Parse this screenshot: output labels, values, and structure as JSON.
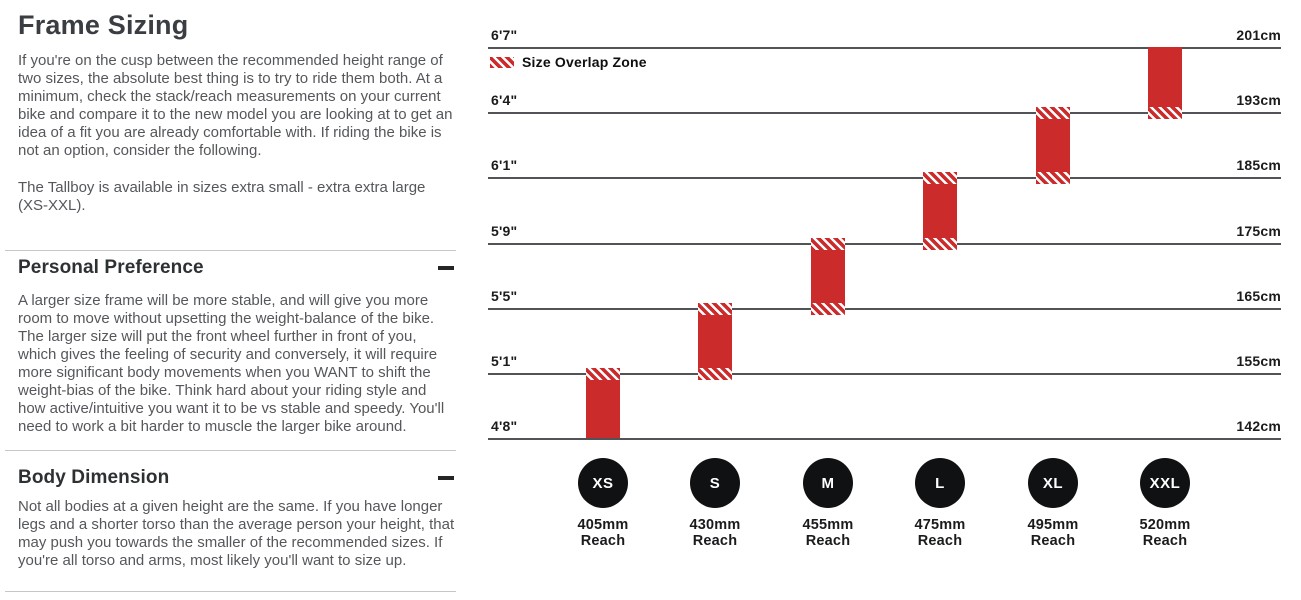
{
  "page": {
    "title": "Frame Sizing",
    "intro_p1": "If you're on the cusp between the recommended height range of two sizes, the absolute best thing is to try to ride them both. At a minimum, check the stack/reach measurements on your current bike and compare it to the new model you are looking at to get an idea of a fit you are already comfortable with. If riding the bike is not an option, consider the following.",
    "intro_p2": "The Tallboy is available in sizes extra small - extra extra large (XS-XXL).",
    "sections": [
      {
        "heading": "Personal Preference",
        "collapse_state": "expanded",
        "body": "A larger size frame will be more stable, and will give you more room to move without upsetting the weight-balance of the bike. The larger size will put the front wheel further in front of you, which gives the feeling of security and conversely, it will require more significant body movements when you WANT to shift the weight-bias of the bike. Think hard about your riding style and how active/intuitive you want it to be vs stable and speedy. You'll need to work a bit harder to muscle the larger bike around."
      },
      {
        "heading": "Body Dimension",
        "collapse_state": "expanded",
        "body": "Not all bodies at a given height are the same. If you have longer legs and a shorter torso than the average person your height, that may push you towards the smaller of the recommended sizes. If you're all torso and arms, most likely you'll want to size up."
      }
    ]
  },
  "chart_data": {
    "type": "bar",
    "subtype": "vertical-range-bars-by-rider-height",
    "title": "",
    "legend": {
      "label": "Size Overlap Zone",
      "swatch": "red-with-white-diagonal-hatch",
      "position": "top-left"
    },
    "colors": {
      "bar_red": "#cc2b2b",
      "circle_black": "#101112",
      "gridline": "#525356"
    },
    "grid": "horizontal-lines-only",
    "height_lines": [
      {
        "ft": "6'7\"",
        "cm": "201cm"
      },
      {
        "ft": "6'4\"",
        "cm": "193cm"
      },
      {
        "ft": "6'1\"",
        "cm": "185cm"
      },
      {
        "ft": "5'9\"",
        "cm": "175cm"
      },
      {
        "ft": "5'5\"",
        "cm": "165cm"
      },
      {
        "ft": "5'1\"",
        "cm": "155cm"
      },
      {
        "ft": "4'8\"",
        "cm": "142cm"
      }
    ],
    "sizes": [
      {
        "label": "XS",
        "reach_value": "405mm",
        "reach_caption": "Reach",
        "from_line": 6,
        "to_line": 5,
        "overlap_top": true,
        "overlap_bottom": false
      },
      {
        "label": "S",
        "reach_value": "430mm",
        "reach_caption": "Reach",
        "from_line": 5,
        "to_line": 4,
        "overlap_top": true,
        "overlap_bottom": true
      },
      {
        "label": "M",
        "reach_value": "455mm",
        "reach_caption": "Reach",
        "from_line": 4,
        "to_line": 3,
        "overlap_top": true,
        "overlap_bottom": true
      },
      {
        "label": "L",
        "reach_value": "475mm",
        "reach_caption": "Reach",
        "from_line": 3,
        "to_line": 2,
        "overlap_top": true,
        "overlap_bottom": true
      },
      {
        "label": "XL",
        "reach_value": "495mm",
        "reach_caption": "Reach",
        "from_line": 2,
        "to_line": 1,
        "overlap_top": true,
        "overlap_bottom": true
      },
      {
        "label": "XXL",
        "reach_value": "520mm",
        "reach_caption": "Reach",
        "from_line": 1,
        "to_line": 0,
        "overlap_top": false,
        "overlap_bottom": true
      }
    ]
  }
}
